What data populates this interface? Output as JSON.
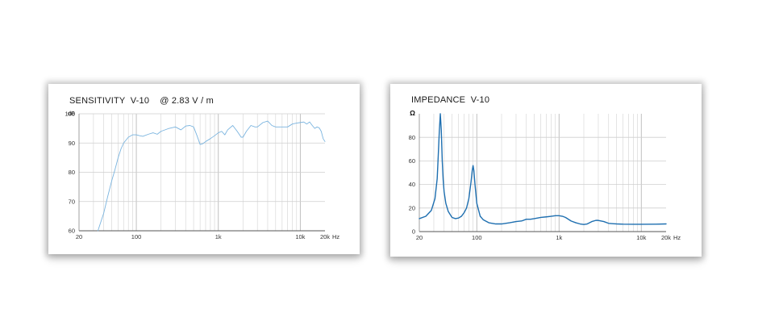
{
  "chart_data": [
    {
      "type": "line",
      "title": "SENSITIVITY  V-10    @ 2.83 V / m",
      "ylabel": "dB",
      "xlabel": "Hz",
      "x_scale": "log",
      "xlim": [
        20,
        20000
      ],
      "ylim": [
        60,
        100
      ],
      "x_ticks": [
        {
          "value": 20,
          "label": "20"
        },
        {
          "value": 100,
          "label": "100"
        },
        {
          "value": 1000,
          "label": "1k"
        },
        {
          "value": 10000,
          "label": "10k"
        },
        {
          "value": 20000,
          "label": "20k"
        }
      ],
      "y_ticks": [
        {
          "value": 60,
          "label": "60"
        },
        {
          "value": 70,
          "label": "70"
        },
        {
          "value": 80,
          "label": "80"
        },
        {
          "value": 90,
          "label": "90"
        },
        {
          "value": 100,
          "label": "100"
        }
      ],
      "grid": true,
      "line_color": "#7ab4df",
      "series": [
        {
          "x": [
            34,
            40,
            45,
            50,
            55,
            60,
            65,
            70,
            80,
            90,
            100,
            110,
            120,
            140,
            160,
            180,
            200,
            250,
            300,
            350,
            400,
            450,
            500,
            550,
            600,
            650,
            700,
            800,
            900,
            1000,
            1100,
            1200,
            1300,
            1500,
            1700,
            1900,
            2000,
            2200,
            2500,
            2800,
            3000,
            3500,
            4000,
            4500,
            5000,
            5500,
            6000,
            7000,
            8000,
            9000,
            10000,
            11000,
            12000,
            13000,
            14000,
            15000,
            16000,
            17000,
            18000,
            19000,
            20000
          ],
          "y": [
            60,
            66,
            72,
            77,
            81,
            85,
            88,
            90,
            92,
            92.8,
            92.8,
            92.5,
            92.3,
            93,
            93.5,
            93,
            94,
            95,
            95.5,
            94.5,
            95.8,
            96,
            95.5,
            92.5,
            89.5,
            89.8,
            90.5,
            91.5,
            92.5,
            93.5,
            94,
            92.8,
            94.5,
            96,
            94,
            92,
            92,
            94,
            96,
            95.5,
            95.5,
            97,
            97.5,
            96,
            95.5,
            95.5,
            95.5,
            95.5,
            96.5,
            96.8,
            97,
            97.2,
            96.5,
            97.2,
            96,
            95,
            95.5,
            95.2,
            94,
            91.5,
            90.5
          ]
        }
      ]
    },
    {
      "type": "line",
      "title": "IMPEDANCE  V-10",
      "ylabel": "Ω",
      "xlabel": "Hz",
      "x_scale": "log",
      "xlim": [
        20,
        20000
      ],
      "ylim": [
        0,
        100
      ],
      "x_ticks": [
        {
          "value": 20,
          "label": "20"
        },
        {
          "value": 100,
          "label": "100"
        },
        {
          "value": 1000,
          "label": "1k"
        },
        {
          "value": 10000,
          "label": "10k"
        },
        {
          "value": 20000,
          "label": "20k"
        }
      ],
      "y_ticks": [
        {
          "value": 0,
          "label": "0"
        },
        {
          "value": 20,
          "label": "20"
        },
        {
          "value": 40,
          "label": "40"
        },
        {
          "value": 60,
          "label": "60"
        },
        {
          "value": 80,
          "label": "80"
        }
      ],
      "grid": true,
      "line_color": "#1e6fb0",
      "series": [
        {
          "x": [
            20,
            24,
            28,
            31,
            33,
            34,
            35,
            36,
            37,
            38,
            39,
            40,
            42,
            45,
            50,
            55,
            60,
            65,
            70,
            75,
            80,
            85,
            88,
            90,
            92,
            95,
            100,
            110,
            120,
            140,
            170,
            200,
            250,
            300,
            350,
            400,
            450,
            500,
            600,
            700,
            800,
            900,
            1000,
            1100,
            1200,
            1400,
            1600,
            1800,
            2000,
            2200,
            2500,
            2800,
            3000,
            3500,
            4000,
            5000,
            6000,
            8000,
            10000,
            15000,
            20000
          ],
          "y": [
            11,
            13,
            18,
            28,
            45,
            65,
            85,
            100,
            86,
            60,
            44,
            34,
            24,
            17,
            12,
            11,
            11.5,
            13,
            16,
            20,
            28,
            42,
            52,
            56,
            52,
            40,
            24,
            13,
            10,
            7.5,
            6.5,
            6.5,
            7.5,
            8.5,
            9,
            10.5,
            10.5,
            11,
            12,
            12.5,
            13,
            13.5,
            13.5,
            13,
            12,
            9,
            7.5,
            6.5,
            6,
            6.5,
            8.5,
            9.5,
            9.5,
            8.5,
            7,
            6.5,
            6.3,
            6.2,
            6.2,
            6.3,
            6.5
          ]
        }
      ]
    }
  ]
}
